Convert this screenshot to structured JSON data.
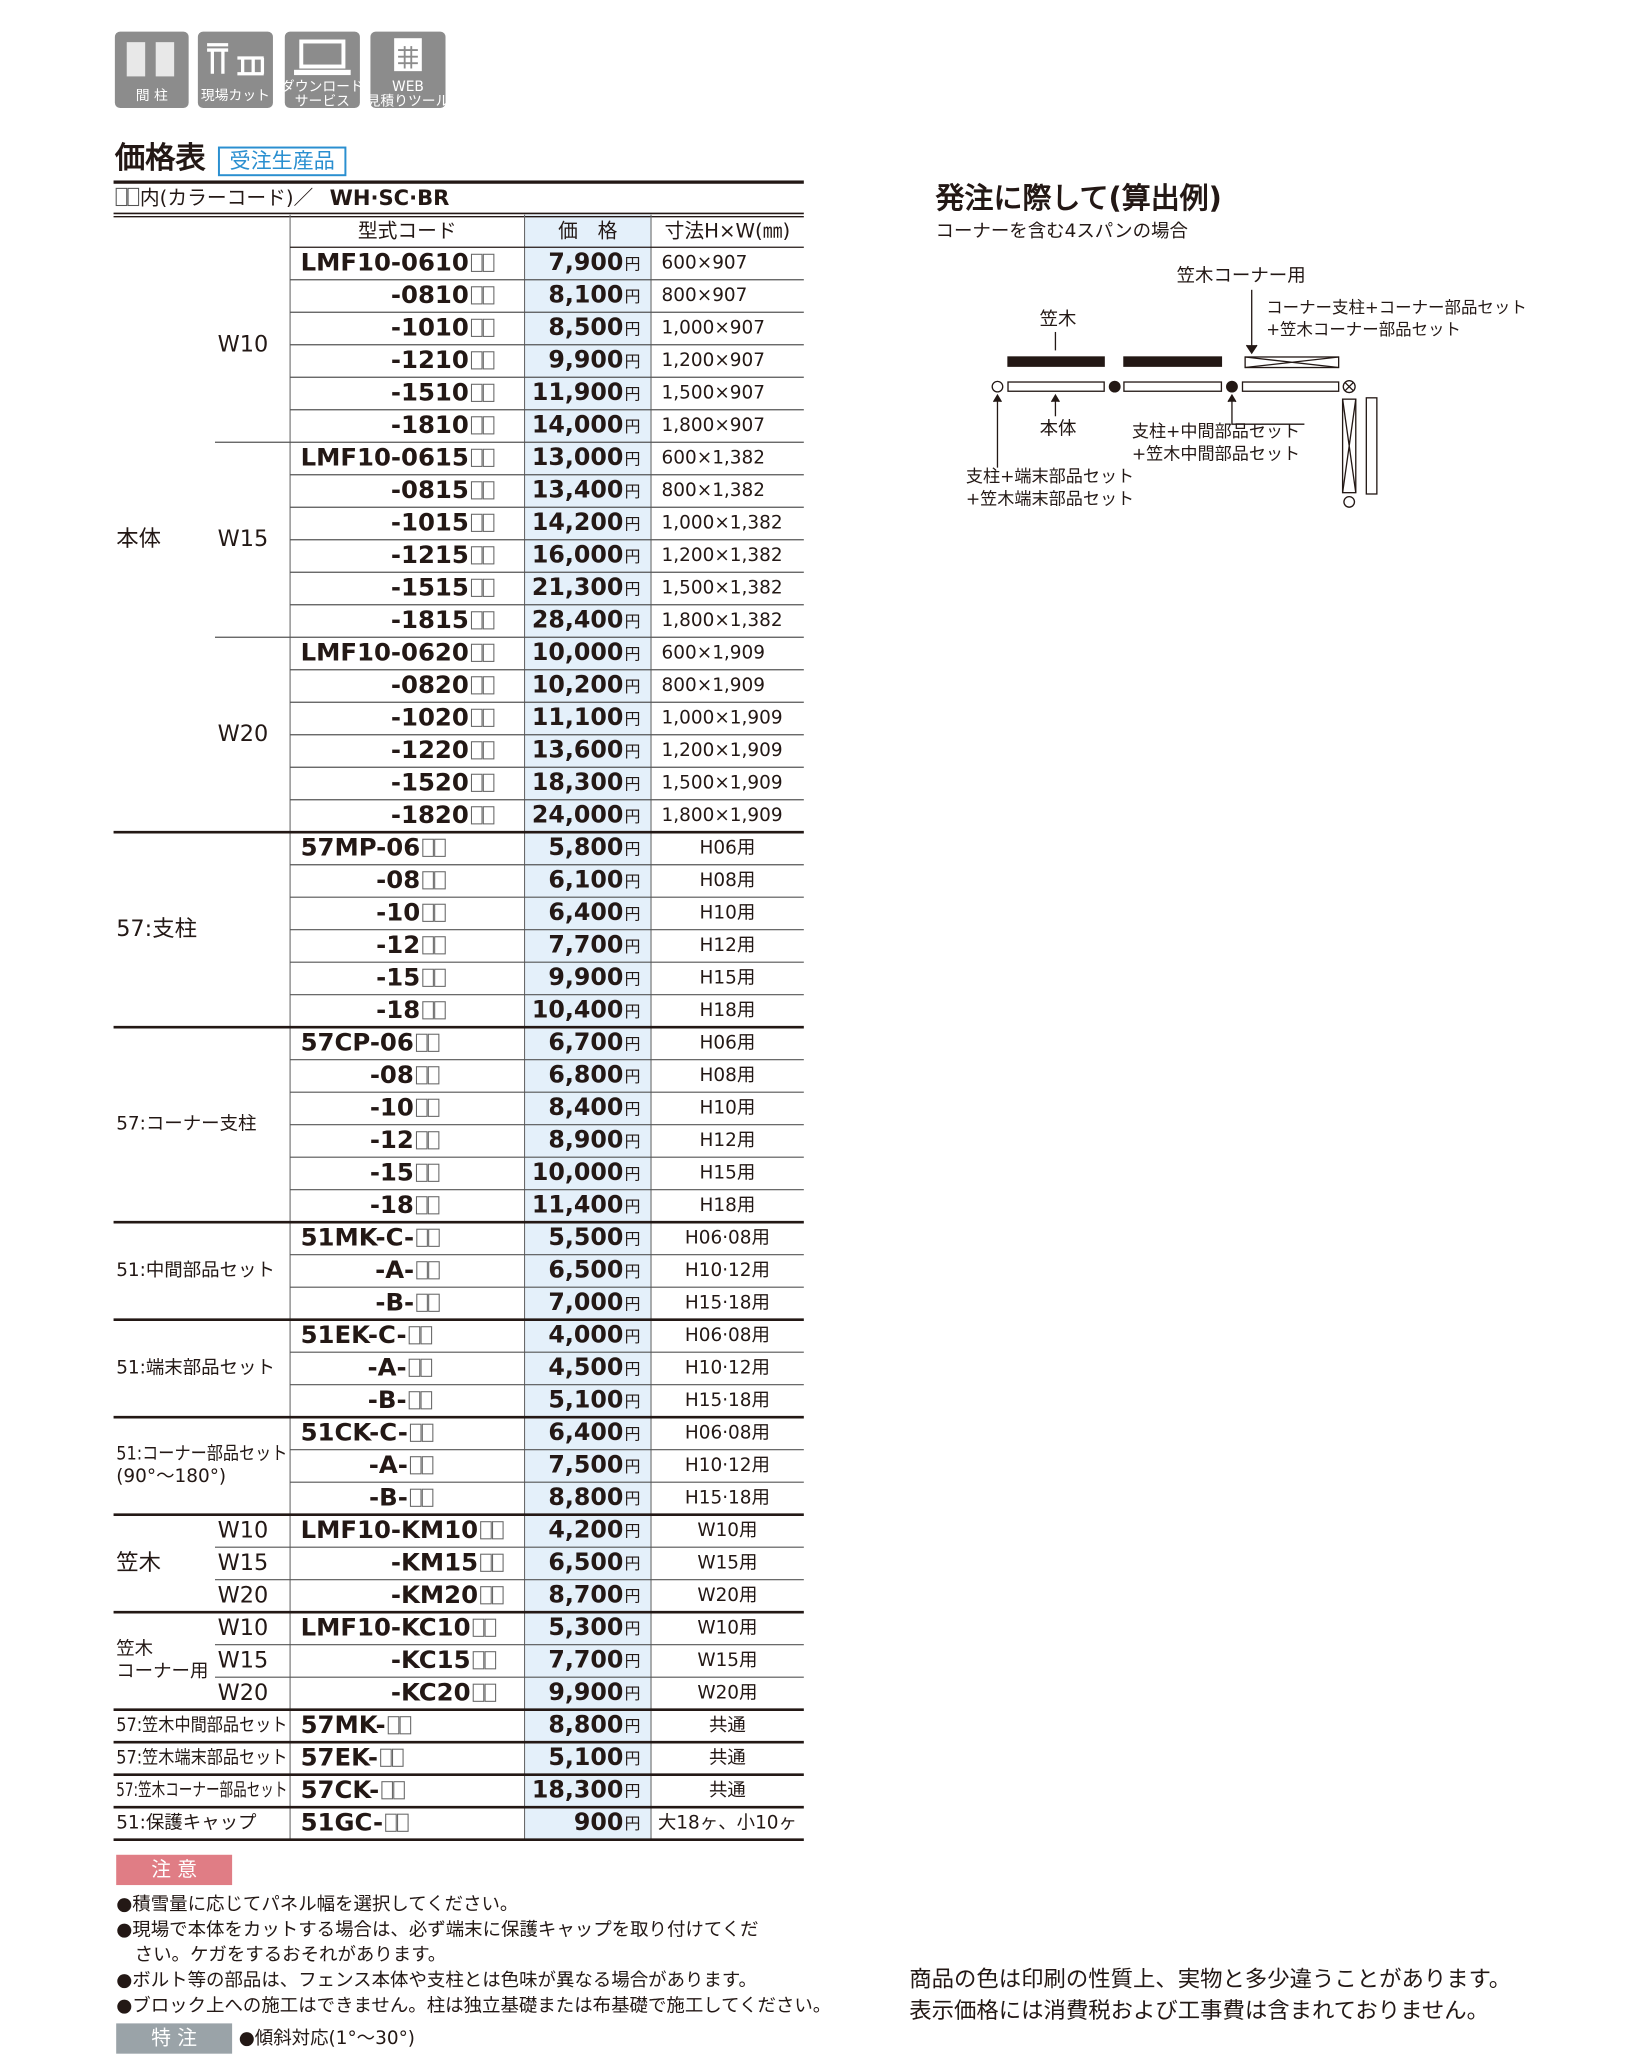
{
  "icons": [
    [
      "間 柱"
    ],
    [
      "現場カット"
    ],
    [
      "ダウンロード",
      "サービス"
    ],
    [
      "WEB",
      "見積りツール"
    ]
  ],
  "price_table": {
    "title": "価格表",
    "badge": "受注生産品",
    "color_note": "内(カラーコード)／",
    "colors": "WH·SC·BR",
    "headers": [
      "型式コード",
      "価　格",
      "寸法H×W(㎜)"
    ],
    "currency": "円",
    "groups": [
      {
        "label": [
          "本体"
        ],
        "sections": [
          {
            "label": "W10",
            "rows": [
              [
                "LMF10-0610",
                "7,900",
                "600×907"
              ],
              [
                "-0810",
                "8,100",
                "800×907"
              ],
              [
                "-1010",
                "8,500",
                "1,000×907"
              ],
              [
                "-1210",
                "9,900",
                "1,200×907"
              ],
              [
                "-1510",
                "11,900",
                "1,500×907"
              ],
              [
                "-1810",
                "14,000",
                "1,800×907"
              ]
            ]
          },
          {
            "label": "W15",
            "rows": [
              [
                "LMF10-0615",
                "13,000",
                "600×1,382"
              ],
              [
                "-0815",
                "13,400",
                "800×1,382"
              ],
              [
                "-1015",
                "14,200",
                "1,000×1,382"
              ],
              [
                "-1215",
                "16,000",
                "1,200×1,382"
              ],
              [
                "-1515",
                "21,300",
                "1,500×1,382"
              ],
              [
                "-1815",
                "28,400",
                "1,800×1,382"
              ]
            ]
          },
          {
            "label": "W20",
            "rows": [
              [
                "LMF10-0620",
                "10,000",
                "600×1,909"
              ],
              [
                "-0820",
                "10,200",
                "800×1,909"
              ],
              [
                "-1020",
                "11,100",
                "1,000×1,909"
              ],
              [
                "-1220",
                "13,600",
                "1,200×1,909"
              ],
              [
                "-1520",
                "18,300",
                "1,500×1,909"
              ],
              [
                "-1820",
                "24,000",
                "1,800×1,909"
              ]
            ]
          }
        ]
      },
      {
        "label": [
          "57:支柱"
        ],
        "sections": [
          {
            "rows": [
              [
                "57MP-06",
                "5,800",
                "H06用"
              ],
              [
                "-08",
                "6,100",
                "H08用"
              ],
              [
                "-10",
                "6,400",
                "H10用"
              ],
              [
                "-12",
                "7,700",
                "H12用"
              ],
              [
                "-15",
                "9,900",
                "H15用"
              ],
              [
                "-18",
                "10,400",
                "H18用"
              ]
            ]
          }
        ]
      },
      {
        "label": [
          "57:コーナー支柱"
        ],
        "sections": [
          {
            "rows": [
              [
                "57CP-06",
                "6,700",
                "H06用"
              ],
              [
                "-08",
                "6,800",
                "H08用"
              ],
              [
                "-10",
                "8,400",
                "H10用"
              ],
              [
                "-12",
                "8,900",
                "H12用"
              ],
              [
                "-15",
                "10,000",
                "H15用"
              ],
              [
                "-18",
                "11,400",
                "H18用"
              ]
            ]
          }
        ]
      },
      {
        "label": [
          "51:中間部品セット"
        ],
        "sections": [
          {
            "rows": [
              [
                "51MK-C-",
                "5,500",
                "H06·08用"
              ],
              [
                "-A-",
                "6,500",
                "H10·12用"
              ],
              [
                "-B-",
                "7,000",
                "H15·18用"
              ]
            ]
          }
        ]
      },
      {
        "label": [
          "51:端末部品セット"
        ],
        "sections": [
          {
            "rows": [
              [
                "51EK-C-",
                "4,000",
                "H06·08用"
              ],
              [
                "-A-",
                "4,500",
                "H10·12用"
              ],
              [
                "-B-",
                "5,100",
                "H15·18用"
              ]
            ]
          }
        ]
      },
      {
        "label": [
          "51:コーナー部品セット",
          "(90°〜180°)"
        ],
        "sections": [
          {
            "rows": [
              [
                "51CK-C-",
                "6,400",
                "H06·08用"
              ],
              [
                "-A-",
                "7,500",
                "H10·12用"
              ],
              [
                "-B-",
                "8,800",
                "H15·18用"
              ]
            ]
          }
        ]
      },
      {
        "label": [
          "笠木"
        ],
        "sections": [
          {
            "label": "W10",
            "rows": [
              [
                "LMF10-KM10",
                "4,200",
                "W10用"
              ]
            ]
          },
          {
            "label": "W15",
            "rows": [
              [
                "-KM15",
                "6,500",
                "W15用"
              ]
            ]
          },
          {
            "label": "W20",
            "rows": [
              [
                "-KM20",
                "8,700",
                "W20用"
              ]
            ]
          }
        ]
      },
      {
        "label": [
          "笠木",
          "コーナー用"
        ],
        "sections": [
          {
            "label": "W10",
            "rows": [
              [
                "LMF10-KC10",
                "5,300",
                "W10用"
              ]
            ]
          },
          {
            "label": "W15",
            "rows": [
              [
                "-KC15",
                "7,700",
                "W15用"
              ]
            ]
          },
          {
            "label": "W20",
            "rows": [
              [
                "-KC20",
                "9,900",
                "W20用"
              ]
            ]
          }
        ]
      },
      {
        "label": [
          "57:笠木中間部品セット"
        ],
        "sections": [
          {
            "rows": [
              [
                "57MK-",
                "8,800",
                "共通"
              ]
            ]
          }
        ]
      },
      {
        "label": [
          "57:笠木端末部品セット"
        ],
        "sections": [
          {
            "rows": [
              [
                "57EK-",
                "5,100",
                "共通"
              ]
            ]
          }
        ]
      },
      {
        "label": [
          "57:笠木コーナー部品セット"
        ],
        "sections": [
          {
            "rows": [
              [
                "57CK-",
                "18,300",
                "共通"
              ]
            ]
          }
        ]
      },
      {
        "label": [
          "51:保護キャップ"
        ],
        "sections": [
          {
            "rows": [
              [
                "51GC-",
                "900",
                "大18ヶ、小10ヶ"
              ]
            ]
          }
        ]
      }
    ]
  },
  "caution": {
    "title": "注 意",
    "items": [
      [
        "●積雪量に応じてパネル幅を選択してください。"
      ],
      [
        "●現場で本体をカットする場合は、必ず端末に保護キャップを取り付けてくだ",
        "さい。ケガをするおそれがあります。"
      ],
      [
        "●ボルト等の部品は、フェンス本体や支柱とは色味が異なる場合があります。"
      ],
      [
        "●ブロック上への施工はできません。柱は独立基礎または布基礎で施工してください。"
      ]
    ]
  },
  "special": {
    "title": "特 注",
    "text": "●傾斜対応(1°〜30°)"
  },
  "example": {
    "title": "発注に際して(算出例)",
    "subtitle": "コーナーを含む4スパンの場合",
    "labels": {
      "corner_kasagi": "笠木コーナー用",
      "kasagi": "笠木",
      "corner_post": [
        "コーナー支柱+コーナー部品セット",
        "+笠木コーナー部品セット"
      ],
      "body": "本体",
      "mid_post": [
        "支柱+中間部品セット",
        "+笠木中間部品セット"
      ],
      "end_post": [
        "支柱+端末部品セット",
        "+笠木端末部品セット"
      ]
    }
  },
  "footer": [
    "商品の色は印刷の性質上、実物と多少違うことがあります。",
    "表示価格には消費税および工事費は含まれておりません。"
  ]
}
